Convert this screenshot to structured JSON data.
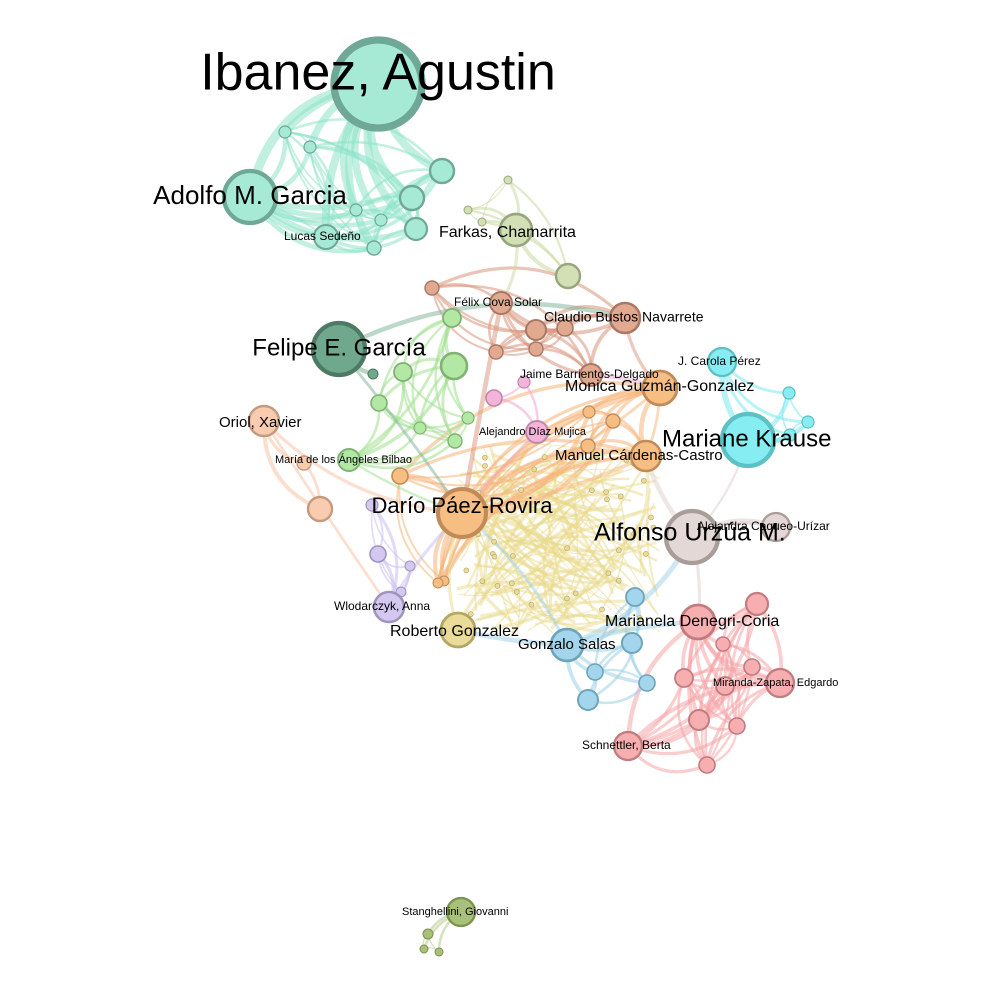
{
  "communities": {
    "ibanez": {
      "fill": "#a6ead6",
      "stroke": "#6fa896",
      "edge": "#8ee3c9"
    },
    "farkas": {
      "fill": "#d3dfb5",
      "stroke": "#98a67e",
      "edge": "#c8d9a0"
    },
    "cova": {
      "fill": "#e0a990",
      "stroke": "#a87864",
      "edge": "#d9947a"
    },
    "felipe": {
      "fill": "#6fa88c",
      "stroke": "#4d7a65",
      "edge": "#7bb195"
    },
    "green": {
      "fill": "#b2e8a3",
      "stroke": "#7fb273",
      "edge": "#9ee08d"
    },
    "paez": {
      "fill": "#f7be84",
      "stroke": "#c08b58",
      "edge": "#f5b57a"
    },
    "yellow": {
      "fill": "#eadc98",
      "stroke": "#b3a766",
      "edge": "#e9d98a"
    },
    "lavender": {
      "fill": "#d4c8f0",
      "stroke": "#9f93c0",
      "edge": "#cbbef0"
    },
    "pink": {
      "fill": "#f2b4d8",
      "stroke": "#c187a8",
      "edge": "#efa8d1"
    },
    "krause": {
      "fill": "#86eef2",
      "stroke": "#5cc0c4",
      "edge": "#7ae8ee"
    },
    "urzua": {
      "fill": "#e3d8d6",
      "stroke": "#a99d9a",
      "edge": "#ddd0cd"
    },
    "salas": {
      "fill": "#a3d6ec",
      "stroke": "#6ea4ba",
      "edge": "#9ccfe8"
    },
    "denegri": {
      "fill": "#f7aeb0",
      "stroke": "#c07c7e",
      "edge": "#f6a4a7"
    },
    "oriol": {
      "fill": "#f9ccb0",
      "stroke": "#c49b80",
      "edge": "#f7c2a3"
    },
    "stang": {
      "fill": "#a8c07a",
      "stroke": "#7a9150",
      "edge": "#b5cb8c"
    }
  },
  "nodes": [
    {
      "id": "ibanez",
      "label": "Ibanez, Agustin",
      "community": "ibanez",
      "size": 44,
      "labelSize": 52
    },
    {
      "id": "adolfo",
      "label": "Adolfo M. Garcia",
      "community": "ibanez",
      "size": 26,
      "labelSize": 26
    },
    {
      "id": "sedeno",
      "label": "Lucas Sedeño",
      "community": "ibanez",
      "size": 12,
      "labelSize": 12
    },
    {
      "id": "farkas",
      "label": "Farkas, Chamarrita",
      "community": "farkas",
      "size": 16,
      "labelSize": 16
    },
    {
      "id": "felix",
      "label": "Félix Cova Solar",
      "community": "cova",
      "size": 11,
      "labelSize": 12
    },
    {
      "id": "claudio",
      "label": "Claudio Bustos Navarrete",
      "community": "cova",
      "size": 15,
      "labelSize": 14
    },
    {
      "id": "felipe",
      "label": "Felipe E. García",
      "community": "felipe",
      "size": 26,
      "labelSize": 24
    },
    {
      "id": "carola",
      "label": "J. Carola Pérez",
      "community": "krause",
      "size": 14,
      "labelSize": 12
    },
    {
      "id": "jaime",
      "label": "Jaime Barrientos-Delgado",
      "community": "cova",
      "size": 11,
      "labelSize": 12
    },
    {
      "id": "monica",
      "label": "Monica Guzmán-Gonzalez",
      "community": "paez",
      "size": 17,
      "labelSize": 16
    },
    {
      "id": "oriol",
      "label": "Oriol, Xavier",
      "community": "oriol",
      "size": 15,
      "labelSize": 15
    },
    {
      "id": "alejandro",
      "label": "Alejandro Díaz Mujica",
      "community": "pink",
      "size": 11,
      "labelSize": 11
    },
    {
      "id": "krause",
      "label": "Mariane Krause",
      "community": "krause",
      "size": 26,
      "labelSize": 24
    },
    {
      "id": "maria",
      "label": "María de los Ángeles Bilbao",
      "community": "green",
      "size": 11,
      "labelSize": 11
    },
    {
      "id": "manuel",
      "label": "Manuel Cárdenas-Castro",
      "community": "paez",
      "size": 15,
      "labelSize": 15
    },
    {
      "id": "paez",
      "label": "Darío Páez-Rovira",
      "community": "paez",
      "size": 24,
      "labelSize": 22
    },
    {
      "id": "castano",
      "label": "Alejandra Caqueo-Urízar",
      "community": "urzua",
      "size": 14,
      "labelSize": 12
    },
    {
      "id": "urzua",
      "label": "Alfonso Urzúa M.",
      "community": "urzua",
      "size": 26,
      "labelSize": 25
    },
    {
      "id": "wlodar",
      "label": "Wlodarczyk, Anna",
      "community": "lavender",
      "size": 15,
      "labelSize": 12
    },
    {
      "id": "denegri",
      "label": "Marianela Denegri-Coria",
      "community": "denegri",
      "size": 17,
      "labelSize": 16
    },
    {
      "id": "roberto",
      "label": "Roberto Gonzalez",
      "community": "yellow",
      "size": 17,
      "labelSize": 16
    },
    {
      "id": "salas",
      "label": "Gonzalo Salas",
      "community": "salas",
      "size": 16,
      "labelSize": 15
    },
    {
      "id": "miranda",
      "label": "Miranda-Zapata, Edgardo",
      "community": "denegri",
      "size": 14,
      "labelSize": 11
    },
    {
      "id": "schnettler",
      "label": "Schnettler, Berta",
      "community": "denegri",
      "size": 14,
      "labelSize": 12
    },
    {
      "id": "stang",
      "label": "Stanghellini, Giovanni",
      "community": "stang",
      "size": 14,
      "labelSize": 11
    }
  ],
  "minor_nodes": [
    {
      "community": "ibanez",
      "size": 12
    },
    {
      "community": "ibanez",
      "size": 11
    },
    {
      "community": "ibanez",
      "size": 12
    },
    {
      "community": "ibanez",
      "size": 6
    },
    {
      "community": "ibanez",
      "size": 6
    },
    {
      "community": "ibanez",
      "size": 6
    },
    {
      "community": "ibanez",
      "size": 6
    },
    {
      "community": "ibanez",
      "size": 7
    },
    {
      "community": "farkas",
      "size": 12
    },
    {
      "community": "farkas",
      "size": 4
    },
    {
      "community": "farkas",
      "size": 4
    },
    {
      "community": "farkas",
      "size": 4
    },
    {
      "community": "cova",
      "size": 7
    },
    {
      "community": "cova",
      "size": 10
    },
    {
      "community": "cova",
      "size": 7
    },
    {
      "community": "cova",
      "size": 7
    },
    {
      "community": "cova",
      "size": 8
    },
    {
      "community": "green",
      "size": 9
    },
    {
      "community": "green",
      "size": 13
    },
    {
      "community": "green",
      "size": 9
    },
    {
      "community": "green",
      "size": 8
    },
    {
      "community": "green",
      "size": 7
    },
    {
      "community": "green",
      "size": 6
    },
    {
      "community": "green",
      "size": 6
    },
    {
      "community": "felipe",
      "size": 5
    },
    {
      "community": "paez",
      "size": 8
    },
    {
      "community": "paez",
      "size": 7
    },
    {
      "community": "paez",
      "size": 7
    },
    {
      "community": "paez",
      "size": 6
    },
    {
      "community": "paez",
      "size": 5
    },
    {
      "community": "paez",
      "size": 5
    },
    {
      "community": "oriol",
      "size": 12
    },
    {
      "community": "oriol",
      "size": 7
    },
    {
      "community": "pink",
      "size": 8
    },
    {
      "community": "pink",
      "size": 6
    },
    {
      "community": "lavender",
      "size": 8
    },
    {
      "community": "lavender",
      "size": 6
    },
    {
      "community": "lavender",
      "size": 5
    },
    {
      "community": "lavender",
      "size": 5
    },
    {
      "community": "krause",
      "size": 6
    },
    {
      "community": "krause",
      "size": 6
    },
    {
      "community": "krause",
      "size": 6
    },
    {
      "community": "salas",
      "size": 10
    },
    {
      "community": "salas",
      "size": 10
    },
    {
      "community": "salas",
      "size": 9
    },
    {
      "community": "salas",
      "size": 8
    },
    {
      "community": "salas",
      "size": 8
    },
    {
      "community": "denegri",
      "size": 11
    },
    {
      "community": "denegri",
      "size": 10
    },
    {
      "community": "denegri",
      "size": 9
    },
    {
      "community": "denegri",
      "size": 9
    },
    {
      "community": "denegri",
      "size": 8
    },
    {
      "community": "denegri",
      "size": 8
    },
    {
      "community": "denegri",
      "size": 8
    },
    {
      "community": "denegri",
      "size": 7
    },
    {
      "community": "stang",
      "size": 5
    },
    {
      "community": "stang",
      "size": 4
    },
    {
      "community": "stang",
      "size": 4
    }
  ]
}
